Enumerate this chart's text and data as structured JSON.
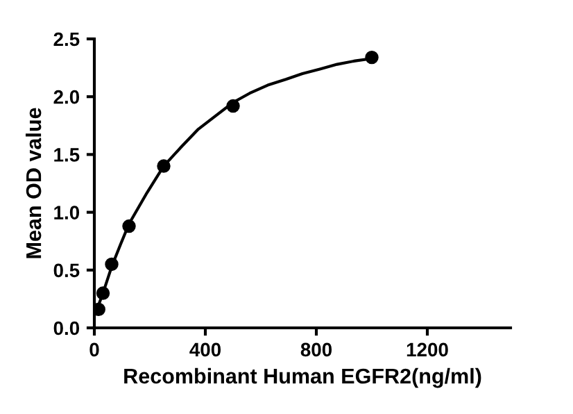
{
  "chart_data": {
    "type": "scatter",
    "xlabel": "Recombinant Human EGFR2(ng/ml)",
    "ylabel": "Mean OD value",
    "xlim": [
      0,
      1500
    ],
    "xticks": [
      0,
      400,
      800,
      1200
    ],
    "ylim": [
      0,
      2.5
    ],
    "yticks": [
      {
        "value": 0,
        "label": "0.0"
      },
      0.5,
      {
        "value": 1,
        "label": "1.0"
      },
      1.5,
      {
        "value": 2,
        "label": "2.0"
      },
      2.5
    ],
    "grid": false,
    "legend": false,
    "series": [
      {
        "color": "#000000",
        "marker": "circle",
        "x": [
          15.6,
          31.25,
          62.5,
          125,
          250,
          500,
          1000
        ],
        "values": [
          0.16,
          0.3,
          0.55,
          0.88,
          1.4,
          1.92,
          2.34
        ]
      },
      {
        "type": "line",
        "color": "#000000",
        "marker": "none",
        "line_style": "solid",
        "x": [
          8,
          15.6,
          31,
          62.5,
          94,
          125,
          190,
          250,
          315,
          375,
          440,
          500,
          560,
          625,
          690,
          750,
          815,
          875,
          940,
          1000
        ],
        "values": [
          0.15,
          0.2,
          0.3,
          0.53,
          0.72,
          0.9,
          1.17,
          1.4,
          1.57,
          1.72,
          1.84,
          1.95,
          2.03,
          2.1,
          2.15,
          2.2,
          2.24,
          2.28,
          2.31,
          2.33
        ]
      }
    ]
  }
}
